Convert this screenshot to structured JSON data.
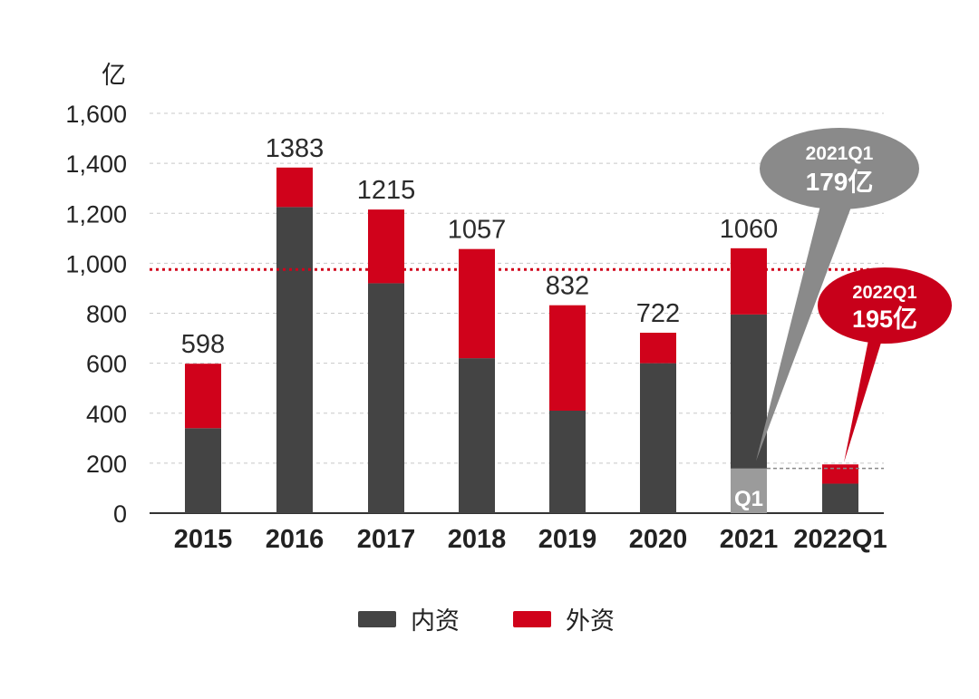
{
  "chart_data": {
    "type": "bar",
    "stacked": true,
    "unit": "亿",
    "categories": [
      "2015",
      "2016",
      "2017",
      "2018",
      "2019",
      "2020",
      "2021",
      "2022Q1"
    ],
    "series": [
      {
        "name": "内资",
        "values": [
          340,
          1225,
          920,
          620,
          410,
          600,
          795,
          118
        ],
        "color": "#444444"
      },
      {
        "name": "外资",
        "values": [
          258,
          158,
          295,
          437,
          422,
          122,
          265,
          77
        ],
        "color": "#d0021b"
      }
    ],
    "totals": [
      "598",
      "1383",
      "1215",
      "1057",
      "832",
      "722",
      "1060",
      ""
    ],
    "yticks": [
      "0",
      "200",
      "400",
      "600",
      "800",
      "1,000",
      "1,200",
      "1,400",
      "1,600"
    ],
    "ylim": [
      0,
      1600
    ],
    "reference_line": {
      "value": 975,
      "color": "#d0021b",
      "style": "dotted"
    },
    "q1_marker": {
      "category": "2021",
      "value": 179,
      "label": "Q1",
      "color": "#9b9b9b"
    },
    "q1_guide_line": {
      "value": 179,
      "style": "dashed",
      "color": "#888888"
    },
    "callouts": [
      {
        "line1": "2021Q1",
        "line2": "179亿",
        "color": "#8a8a8a",
        "target_category": "2021"
      },
      {
        "line1": "2022Q1",
        "line2": "195亿",
        "color": "#c8001a",
        "target_category": "2022Q1"
      }
    ],
    "legend": {
      "position": "bottom",
      "items": [
        "内资",
        "外资"
      ]
    },
    "grid": true
  }
}
